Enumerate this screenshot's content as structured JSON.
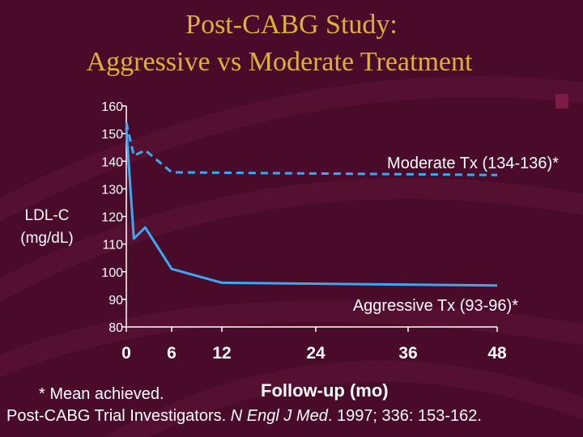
{
  "slide": {
    "title_line1": "Post-CABG Study:",
    "title_line2": "Aggressive vs Moderate Treatment",
    "ylabel_line1": "LDL-C",
    "ylabel_line2": "(mg/dL)",
    "footnote": "* Mean achieved.",
    "xlabel": "Follow-up (mo)",
    "citation_prefix": "Post-CABG Trial Investigators. ",
    "citation_journal": "N Engl J Med",
    "citation_suffix": ". 1997; 336: 153-162."
  },
  "colors": {
    "background": "#4a0a2a",
    "title": "#e0b030",
    "text": "#ffffff",
    "series": "#3aaaf0"
  },
  "chart_data": {
    "type": "line",
    "title": "Post-CABG Study: Aggressive vs Moderate Treatment",
    "xlabel": "Follow-up (mo)",
    "ylabel": "LDL-C (mg/dL)",
    "ylim": [
      80,
      160
    ],
    "yticks": [
      80,
      90,
      100,
      110,
      120,
      130,
      140,
      150,
      160
    ],
    "xtick_labels": [
      "0",
      "6",
      "12",
      "24",
      "36",
      "48"
    ],
    "x_positions": [
      0,
      6,
      12,
      24,
      36,
      48
    ],
    "grid": false,
    "series": [
      {
        "name": "Moderate Tx (134-136)*",
        "style": "dashed",
        "x": [
          0,
          1,
          2.5,
          6,
          48
        ],
        "y": [
          154,
          142,
          144,
          136,
          135
        ]
      },
      {
        "name": "Aggressive Tx (93-96)*",
        "style": "solid",
        "x": [
          0,
          1,
          2.5,
          6,
          12,
          48
        ],
        "y": [
          152,
          112,
          116,
          101,
          96,
          95
        ]
      }
    ]
  }
}
